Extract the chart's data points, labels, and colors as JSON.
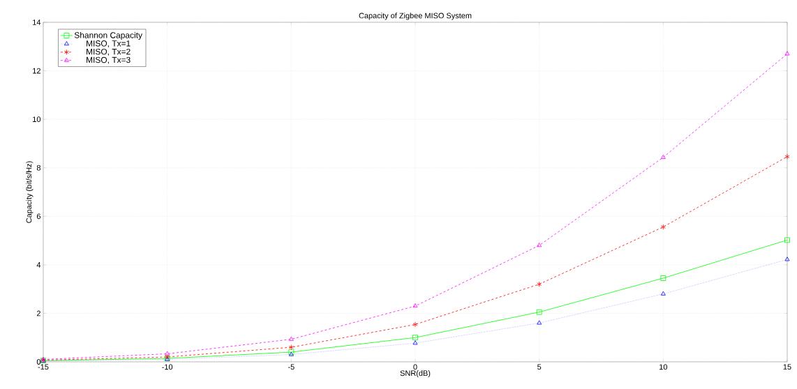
{
  "chart_data": {
    "type": "line",
    "title": "Capacity of Zigbee MISO System",
    "xlabel": "SNR(dB)",
    "ylabel": "Capacity (bit/s/Hz)",
    "x": [
      -15,
      -10,
      -5,
      0,
      5,
      10,
      15
    ],
    "series": [
      {
        "name": "Shannon Capacity",
        "color": "#00ff00",
        "marker": "square",
        "line_style": "solid",
        "values": [
          0.05,
          0.14,
          0.4,
          1.0,
          2.05,
          3.45,
          5.02
        ]
      },
      {
        "name": "MISO, Tx=1",
        "color": "#0000ff",
        "marker": "triangle",
        "line_style": "dotted",
        "values": [
          0.03,
          0.1,
          0.3,
          0.77,
          1.6,
          2.8,
          4.22
        ]
      },
      {
        "name": "MISO, Tx=2",
        "color": "#ff0000",
        "marker": "cross",
        "line_style": "dashed",
        "values": [
          0.07,
          0.2,
          0.6,
          1.54,
          3.2,
          5.56,
          8.46
        ]
      },
      {
        "name": "MISO, Tx=3",
        "color": "#ff00ff",
        "marker": "triangle",
        "line_style": "dashed",
        "values": [
          0.1,
          0.33,
          0.93,
          2.3,
          4.8,
          8.43,
          12.7
        ]
      }
    ],
    "xlim": [
      -15,
      15
    ],
    "xticks": [
      -15,
      -10,
      -5,
      0,
      5,
      10,
      15
    ],
    "ylim": [
      0,
      14
    ],
    "yticks": [
      0,
      2,
      4,
      6,
      8,
      10,
      12,
      14
    ],
    "grid": true,
    "legend": "top left"
  }
}
